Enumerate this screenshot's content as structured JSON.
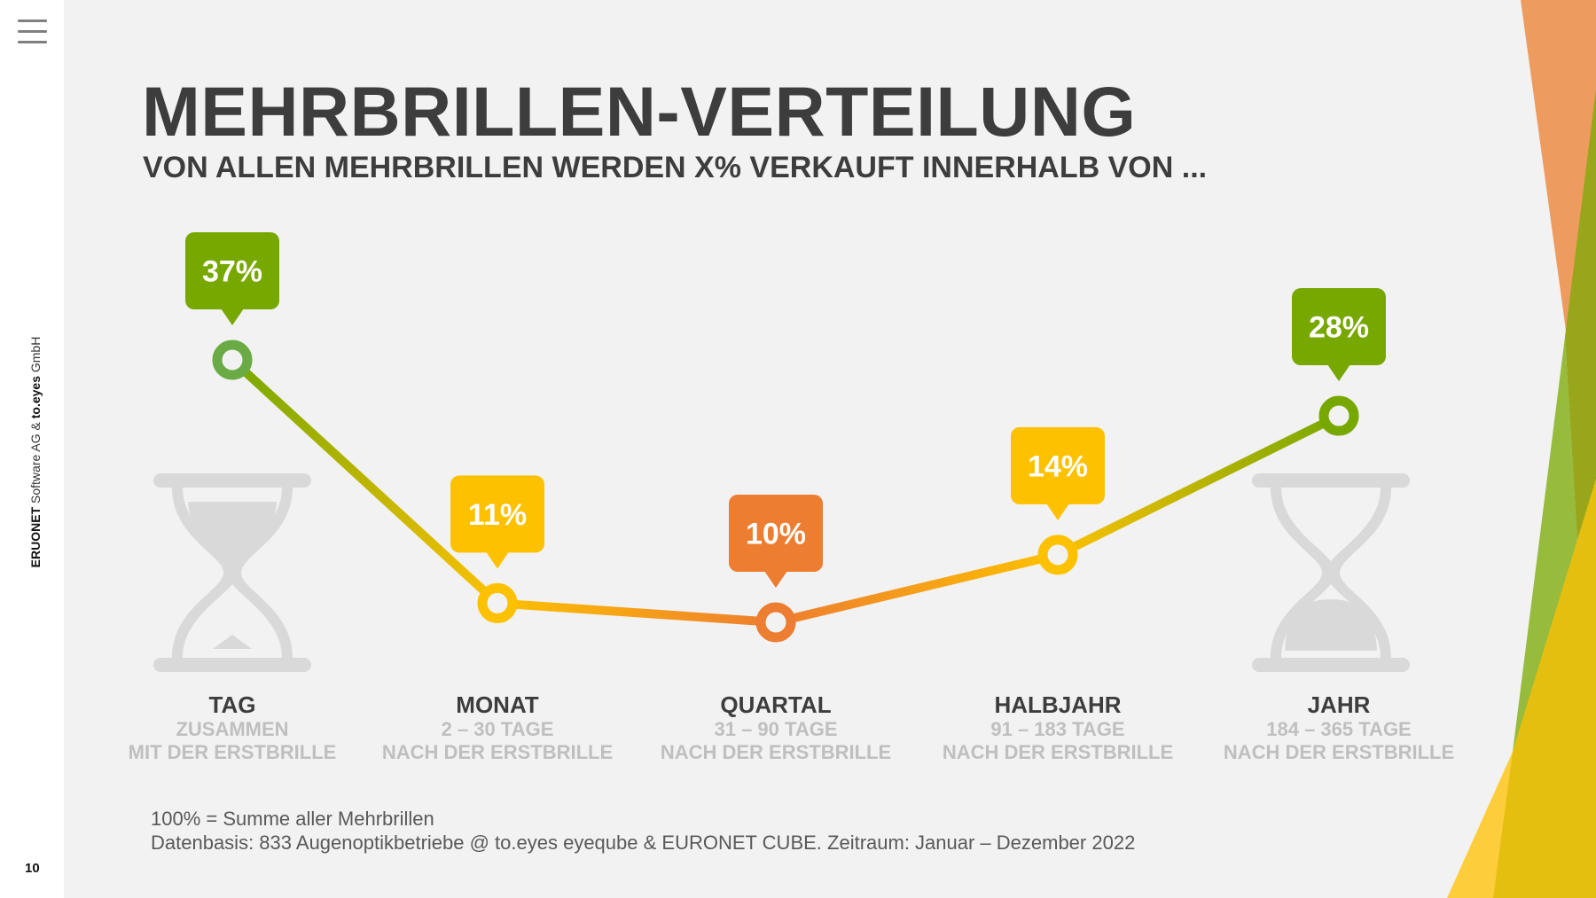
{
  "sidebar": {
    "menu_icon": "hamburger-menu-icon",
    "credit_bold_1": "ERUONET",
    "credit_text_1": " Software AG & ",
    "credit_bold_2": "to.eyes",
    "credit_text_2": " GmbH",
    "page_number": "10"
  },
  "header": {
    "title": "MEHRBRILLEN-VERTEILUNG",
    "subtitle": "VON ALLEN MEHRBRILLEN WERDEN X% VERKAUFT INNERHALB VON ..."
  },
  "colors": {
    "green": "#77a800",
    "green_point": "#6aab45",
    "yellow": "#fdc100",
    "orange": "#ed7d31",
    "hourglass": "#d9d9d9",
    "deco_orange": "#ee9b5f",
    "deco_olive": "#97a61a",
    "deco_green": "#97bb3c",
    "deco_yellow_dark": "#e5bf10",
    "deco_yellow_light": "#fecd3b"
  },
  "icons": {
    "left": "hourglass-start-icon",
    "right": "hourglass-end-icon"
  },
  "chart_data": {
    "type": "line",
    "title": "MEHRBRILLEN-VERTEILUNG",
    "subtitle": "VON ALLEN MEHRBRILLEN WERDEN X% VERKAUFT INNERHALB VON ...",
    "xlabel": "",
    "ylabel": "",
    "unit": "%",
    "categories": [
      "TAG",
      "MONAT",
      "QUARTAL",
      "HALBJAHR",
      "JAHR"
    ],
    "category_subtitles": [
      [
        "ZUSAMMEN",
        "MIT DER ERSTBRILLE"
      ],
      [
        "2 – 30 TAGE",
        "NACH DER ERSTBRILLE"
      ],
      [
        "31 – 90 TAGE",
        "NACH DER ERSTBRILLE"
      ],
      [
        "91 – 183 TAGE",
        "NACH DER ERSTBRILLE"
      ],
      [
        "184 – 365 TAGE",
        "NACH DER ERSTBRILLE"
      ]
    ],
    "values": [
      37,
      11,
      10,
      14,
      28
    ],
    "data_labels": [
      "37%",
      "11%",
      "10%",
      "14%",
      "28%"
    ],
    "point_colors": [
      "#77a800",
      "#fdc100",
      "#ed7d31",
      "#fdc100",
      "#77a800"
    ],
    "grid": false,
    "legend": "none"
  },
  "footnote": {
    "line1": "100% = Summe aller Mehrbrillen",
    "line2": "Datenbasis: 833 Augenoptikbetriebe @ to.eyes eyeqube & EURONET CUBE. Zeitraum: Januar – Dezember 2022"
  }
}
